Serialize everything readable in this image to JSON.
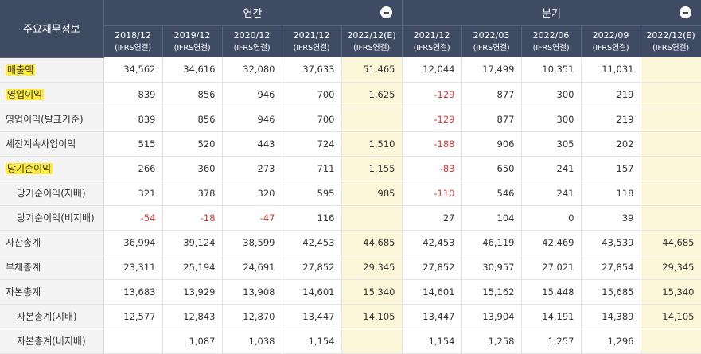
{
  "header": {
    "corner": "주요재무정보",
    "annual": "연간",
    "quarterly": "분기",
    "annual_periods": [
      "2018/12",
      "2019/12",
      "2020/12",
      "2021/12",
      "2022/12(E)"
    ],
    "quarterly_periods": [
      "2021/12",
      "2022/03",
      "2022/06",
      "2022/09",
      "2022/12(E)"
    ],
    "basis": "(IFRS연결)"
  },
  "rows": [
    {
      "label": "매출액",
      "annual": [
        "34,562",
        "34,616",
        "32,080",
        "37,633",
        "51,465"
      ],
      "quarterly": [
        "12,044",
        "17,499",
        "10,351",
        "11,031",
        ""
      ]
    },
    {
      "label": "영업이익",
      "annual": [
        "839",
        "856",
        "946",
        "700",
        "1,625"
      ],
      "quarterly": [
        "-129",
        "877",
        "300",
        "219",
        ""
      ]
    },
    {
      "label": "영업이익(발표기준)",
      "annual": [
        "839",
        "856",
        "946",
        "700",
        ""
      ],
      "quarterly": [
        "-129",
        "877",
        "300",
        "219",
        ""
      ]
    },
    {
      "label": "세전계속사업이익",
      "annual": [
        "515",
        "520",
        "443",
        "724",
        "1,510"
      ],
      "quarterly": [
        "-188",
        "906",
        "305",
        "202",
        ""
      ]
    },
    {
      "label": "당기순이익",
      "annual": [
        "266",
        "360",
        "273",
        "711",
        "1,155"
      ],
      "quarterly": [
        "-83",
        "650",
        "241",
        "157",
        ""
      ]
    },
    {
      "label": "당기순이익(지배)",
      "annual": [
        "321",
        "378",
        "320",
        "595",
        "985"
      ],
      "quarterly": [
        "-110",
        "546",
        "241",
        "118",
        ""
      ]
    },
    {
      "label": "당기순이익(비지배)",
      "annual": [
        "-54",
        "-18",
        "-47",
        "116",
        ""
      ],
      "quarterly": [
        "27",
        "104",
        "0",
        "39",
        ""
      ]
    },
    {
      "label": "자산총계",
      "annual": [
        "36,994",
        "39,124",
        "38,599",
        "42,453",
        "44,685"
      ],
      "quarterly": [
        "42,453",
        "46,119",
        "42,469",
        "43,539",
        "44,685"
      ]
    },
    {
      "label": "부채총계",
      "annual": [
        "23,311",
        "25,194",
        "24,691",
        "27,852",
        "29,345"
      ],
      "quarterly": [
        "27,852",
        "30,957",
        "27,021",
        "27,854",
        "29,345"
      ]
    },
    {
      "label": "자본총계",
      "annual": [
        "13,683",
        "13,929",
        "13,908",
        "14,601",
        "15,340"
      ],
      "quarterly": [
        "14,601",
        "15,162",
        "15,448",
        "15,685",
        "15,340"
      ]
    },
    {
      "label": "자본총계(지배)",
      "annual": [
        "12,577",
        "12,843",
        "12,870",
        "13,447",
        "14,105"
      ],
      "quarterly": [
        "13,447",
        "13,904",
        "14,191",
        "14,389",
        "14,105"
      ]
    },
    {
      "label": "자본총계(비지배)",
      "annual": [
        "",
        "1,087",
        "1,038",
        "1,154",
        ""
      ],
      "quarterly": [
        "1,154",
        "1,258",
        "1,257",
        "1,296",
        ""
      ]
    }
  ],
  "highlighted_rows": [
    0,
    1,
    4
  ],
  "indented_rows": [
    5,
    6,
    10,
    11
  ],
  "colors": {
    "header_bg": "#3f4a63",
    "estimate_bg": "#fdf7d9",
    "negative": "#d23a3a",
    "highlight": "#ffeb3b"
  }
}
